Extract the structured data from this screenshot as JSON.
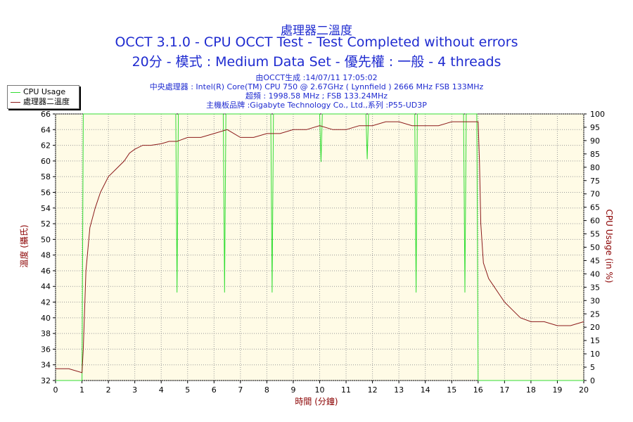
{
  "header": {
    "title1": "處理器二溫度",
    "title2": "OCCT 3.1.0 - CPU OCCT Test - Test Completed without errors",
    "title3": "20分 - 模式 : Medium Data Set - 優先權 : 一般 - 4 threads",
    "info1": "由OCCT生成 :14/07/11 17:05:02",
    "info2": "中央處理器 : Intel(R) Core(TM) CPU 750 @ 2.67GHz ( Lynnfield ) 2666 MHz FSB 133MHz",
    "info3": "超頻 : 1998.58 MHz ; FSB 133.24MHz",
    "info4": "主機板品牌 :Gigabyte Technology Co., Ltd.,系列 :P55-UD3P"
  },
  "colors": {
    "temperature": "#8b1a1a",
    "cpu_usage": "#33dd33",
    "plot_bg": "#fffbe6",
    "grid": "#999999",
    "title": "#1f2bd0",
    "axis_label": "#8b0000"
  },
  "chart_data": {
    "type": "line",
    "legend": {
      "placement": "top-left",
      "entries": [
        "CPU Usage",
        "處理器二溫度"
      ]
    },
    "xlabel": "時間 (分鐘)",
    "ylabel_left": "溫度 (攝氏)",
    "ylabel_right": "CPU Usage (in %)",
    "xlim": [
      0,
      20
    ],
    "ylim_left": [
      32,
      66
    ],
    "ylim_right": [
      0,
      100
    ],
    "x_ticks": [
      "0",
      "1",
      "2",
      "3",
      "4",
      "5",
      "6",
      "7",
      "8",
      "9",
      "10",
      "11",
      "12",
      "13",
      "14",
      "15",
      "16",
      "17",
      "18",
      "19",
      "20"
    ],
    "y_left_ticks": [
      "32",
      "34",
      "36",
      "38",
      "40",
      "42",
      "44",
      "46",
      "48",
      "50",
      "52",
      "54",
      "56",
      "58",
      "60",
      "62",
      "64",
      "66"
    ],
    "y_right_ticks": [
      "0",
      "5",
      "10",
      "15",
      "20",
      "25",
      "30",
      "35",
      "40",
      "45",
      "50",
      "55",
      "60",
      "65",
      "70",
      "75",
      "80",
      "85",
      "90",
      "95",
      "100"
    ],
    "grid": true,
    "series": [
      {
        "name": "處理器二溫度",
        "axis": "left",
        "x": [
          0,
          0.5,
          1.0,
          1.05,
          1.15,
          1.3,
          1.5,
          1.7,
          2.0,
          2.3,
          2.6,
          2.8,
          3.0,
          3.3,
          3.6,
          4.0,
          4.3,
          4.6,
          5.0,
          5.5,
          6.0,
          6.5,
          7.0,
          7.5,
          8.0,
          8.5,
          9.0,
          9.5,
          10.0,
          10.5,
          11.0,
          11.5,
          12.0,
          12.5,
          13.0,
          13.5,
          14.0,
          14.5,
          15.0,
          15.5,
          15.9,
          16.0,
          16.05,
          16.1,
          16.2,
          16.4,
          16.6,
          16.8,
          17.0,
          17.3,
          17.6,
          18.0,
          18.5,
          19.0,
          19.5,
          20.0
        ],
        "values": [
          33.5,
          33.5,
          33.0,
          36.0,
          46.0,
          51.5,
          54.0,
          56.0,
          58.0,
          59.0,
          60.0,
          61.0,
          61.5,
          62.0,
          62.0,
          62.2,
          62.5,
          62.5,
          63.0,
          63.0,
          63.5,
          64.0,
          63.0,
          63.0,
          63.5,
          63.5,
          64.0,
          64.0,
          64.5,
          64.0,
          64.0,
          64.5,
          64.5,
          65.0,
          65.0,
          64.5,
          64.5,
          64.5,
          65.0,
          65.0,
          65.0,
          65.0,
          60.0,
          52.0,
          47.0,
          45.0,
          44.0,
          43.0,
          42.0,
          41.0,
          40.0,
          39.5,
          39.5,
          39.0,
          39.0,
          39.5
        ]
      },
      {
        "name": "CPU Usage",
        "axis": "right",
        "x": [
          0,
          0.95,
          1.0,
          1.05,
          4.55,
          4.6,
          4.65,
          6.35,
          6.4,
          6.45,
          8.15,
          8.2,
          8.25,
          10.0,
          10.05,
          10.1,
          11.75,
          11.8,
          11.85,
          13.6,
          13.65,
          13.7,
          15.45,
          15.5,
          15.55,
          15.95,
          16.0,
          16.05,
          20.0
        ],
        "values": [
          0,
          0,
          0,
          100,
          100,
          33,
          100,
          100,
          33,
          100,
          100,
          33,
          100,
          100,
          82,
          100,
          100,
          83,
          100,
          100,
          33,
          100,
          100,
          33,
          100,
          100,
          0,
          0,
          0
        ]
      }
    ]
  }
}
